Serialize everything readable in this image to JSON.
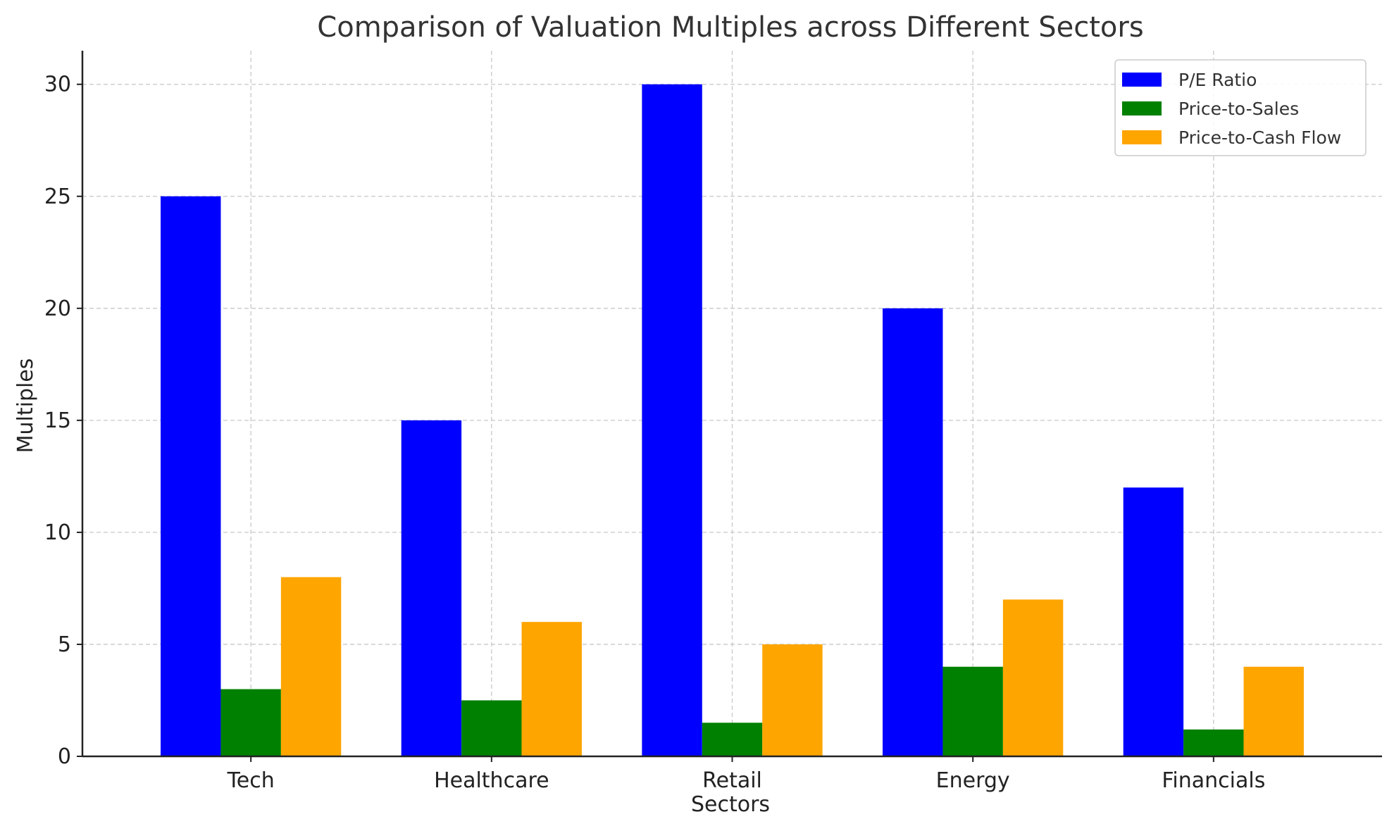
{
  "chart_data": {
    "type": "bar",
    "title": "Comparison of Valuation Multiples across Different Sectors",
    "xlabel": "Sectors",
    "ylabel": "Multiples",
    "categories": [
      "Tech",
      "Healthcare",
      "Retail",
      "Energy",
      "Financials"
    ],
    "series": [
      {
        "name": "P/E Ratio",
        "color": "#0000ff",
        "values": [
          25,
          15,
          30,
          20,
          12
        ]
      },
      {
        "name": "Price-to-Sales",
        "color": "#008000",
        "values": [
          3,
          2.5,
          1.5,
          4,
          1.2
        ]
      },
      {
        "name": "Price-to-Cash Flow",
        "color": "#ffa500",
        "values": [
          8,
          6,
          5,
          7,
          4
        ]
      }
    ],
    "ylim": [
      0,
      31.5
    ],
    "yticks": [
      0,
      5,
      10,
      15,
      20,
      25,
      30
    ],
    "grid": true,
    "legend": "top-right"
  }
}
